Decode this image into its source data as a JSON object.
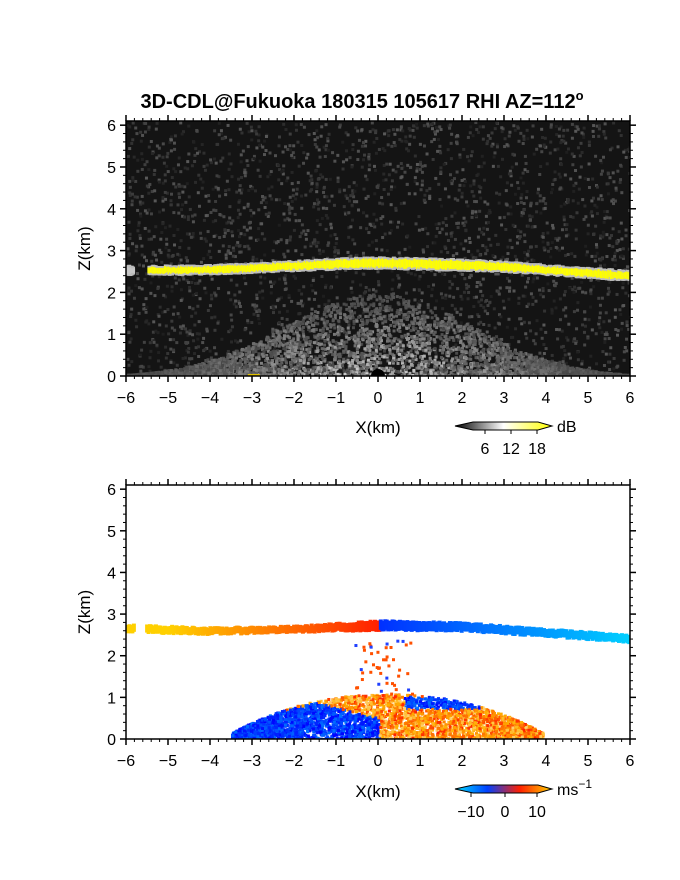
{
  "title": "3D-CDL@Fukuoka 180315 105617 RHI AZ=112",
  "title_superscript": "o",
  "chart_data": [
    {
      "type": "heatmap",
      "panel": "reflectivity",
      "xlabel": "X(km)",
      "ylabel": "Z(km)",
      "xlim": [
        -6,
        6
      ],
      "ylim": [
        0,
        6.1
      ],
      "xticks": [
        "-6",
        "-5",
        "-4",
        "-3",
        "-2",
        "-1",
        "0",
        "1",
        "2",
        "3",
        "4",
        "5",
        "6"
      ],
      "yticks": [
        "0",
        "1",
        "2",
        "3",
        "4",
        "5",
        "6"
      ],
      "colorbar": {
        "unit": "dB",
        "ticks": [
          "6",
          "12",
          "18"
        ],
        "colors": [
          "#000000",
          "#ffffff",
          "#ffff00"
        ]
      },
      "cloud_layer": {
        "x": [
          -5.5,
          -4,
          -3,
          -2,
          -1,
          0,
          1,
          2,
          3,
          4,
          5,
          6
        ],
        "z_top": [
          2.6,
          2.62,
          2.66,
          2.72,
          2.78,
          2.8,
          2.78,
          2.75,
          2.7,
          2.62,
          2.55,
          2.48
        ],
        "z_bottom": [
          2.45,
          2.47,
          2.5,
          2.55,
          2.58,
          2.6,
          2.58,
          2.55,
          2.52,
          2.45,
          2.38,
          2.3
        ],
        "color": "#ffff00"
      },
      "background_color": "#141414"
    },
    {
      "type": "heatmap",
      "panel": "doppler_velocity",
      "xlabel": "X(km)",
      "ylabel": "Z(km)",
      "xlim": [
        -6,
        6
      ],
      "ylim": [
        0,
        6.1
      ],
      "xticks": [
        "-6",
        "-5",
        "-4",
        "-3",
        "-2",
        "-1",
        "0",
        "1",
        "2",
        "3",
        "4",
        "5",
        "6"
      ],
      "yticks": [
        "0",
        "1",
        "2",
        "3",
        "4",
        "5",
        "6"
      ],
      "colorbar": {
        "unit": "ms",
        "unit_superscript": "−1",
        "ticks": [
          "−10",
          "0",
          "10"
        ],
        "colors": [
          "#00e0ff",
          "#0040ff",
          "#ff2000",
          "#ffd000"
        ]
      },
      "cloud_layer": {
        "x": [
          -6,
          -4,
          -2,
          0,
          2,
          4,
          6
        ],
        "z_top": [
          2.75,
          2.68,
          2.72,
          2.85,
          2.8,
          2.65,
          2.5
        ],
        "z_bottom": [
          2.55,
          2.5,
          2.55,
          2.6,
          2.58,
          2.45,
          2.3
        ],
        "velocity": [
          9,
          8,
          5,
          0,
          -5,
          -8,
          -10
        ]
      },
      "boundary_layer_extent_km": [
        -3.5,
        3.9
      ],
      "boundary_layer_top_km": 1.1
    }
  ]
}
